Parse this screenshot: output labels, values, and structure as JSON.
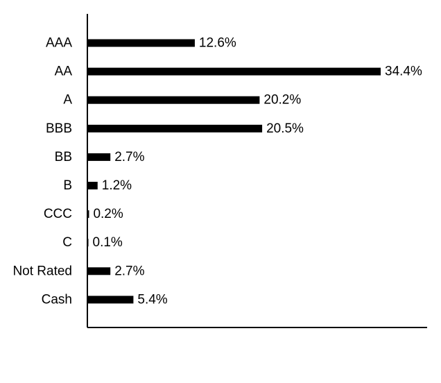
{
  "chart_data": {
    "type": "bar",
    "orientation": "horizontal",
    "categories": [
      "AAA",
      "AA",
      "A",
      "BBB",
      "BB",
      "B",
      "CCC",
      "C",
      "Not Rated",
      "Cash"
    ],
    "values": [
      12.6,
      34.4,
      20.2,
      20.5,
      2.7,
      1.2,
      0.2,
      0.1,
      2.7,
      5.4
    ],
    "data_labels": [
      "12.6%",
      "34.4%",
      "20.2%",
      "20.5%",
      "2.7%",
      "1.2%",
      "0.2%",
      "0.1%",
      "2.7%",
      "5.4%"
    ],
    "title": "",
    "xlabel": "",
    "ylabel": "",
    "xlim": [
      0,
      40
    ],
    "grid": false,
    "legend": "none",
    "bar_color": "#000000",
    "axis_color": "#000000"
  }
}
